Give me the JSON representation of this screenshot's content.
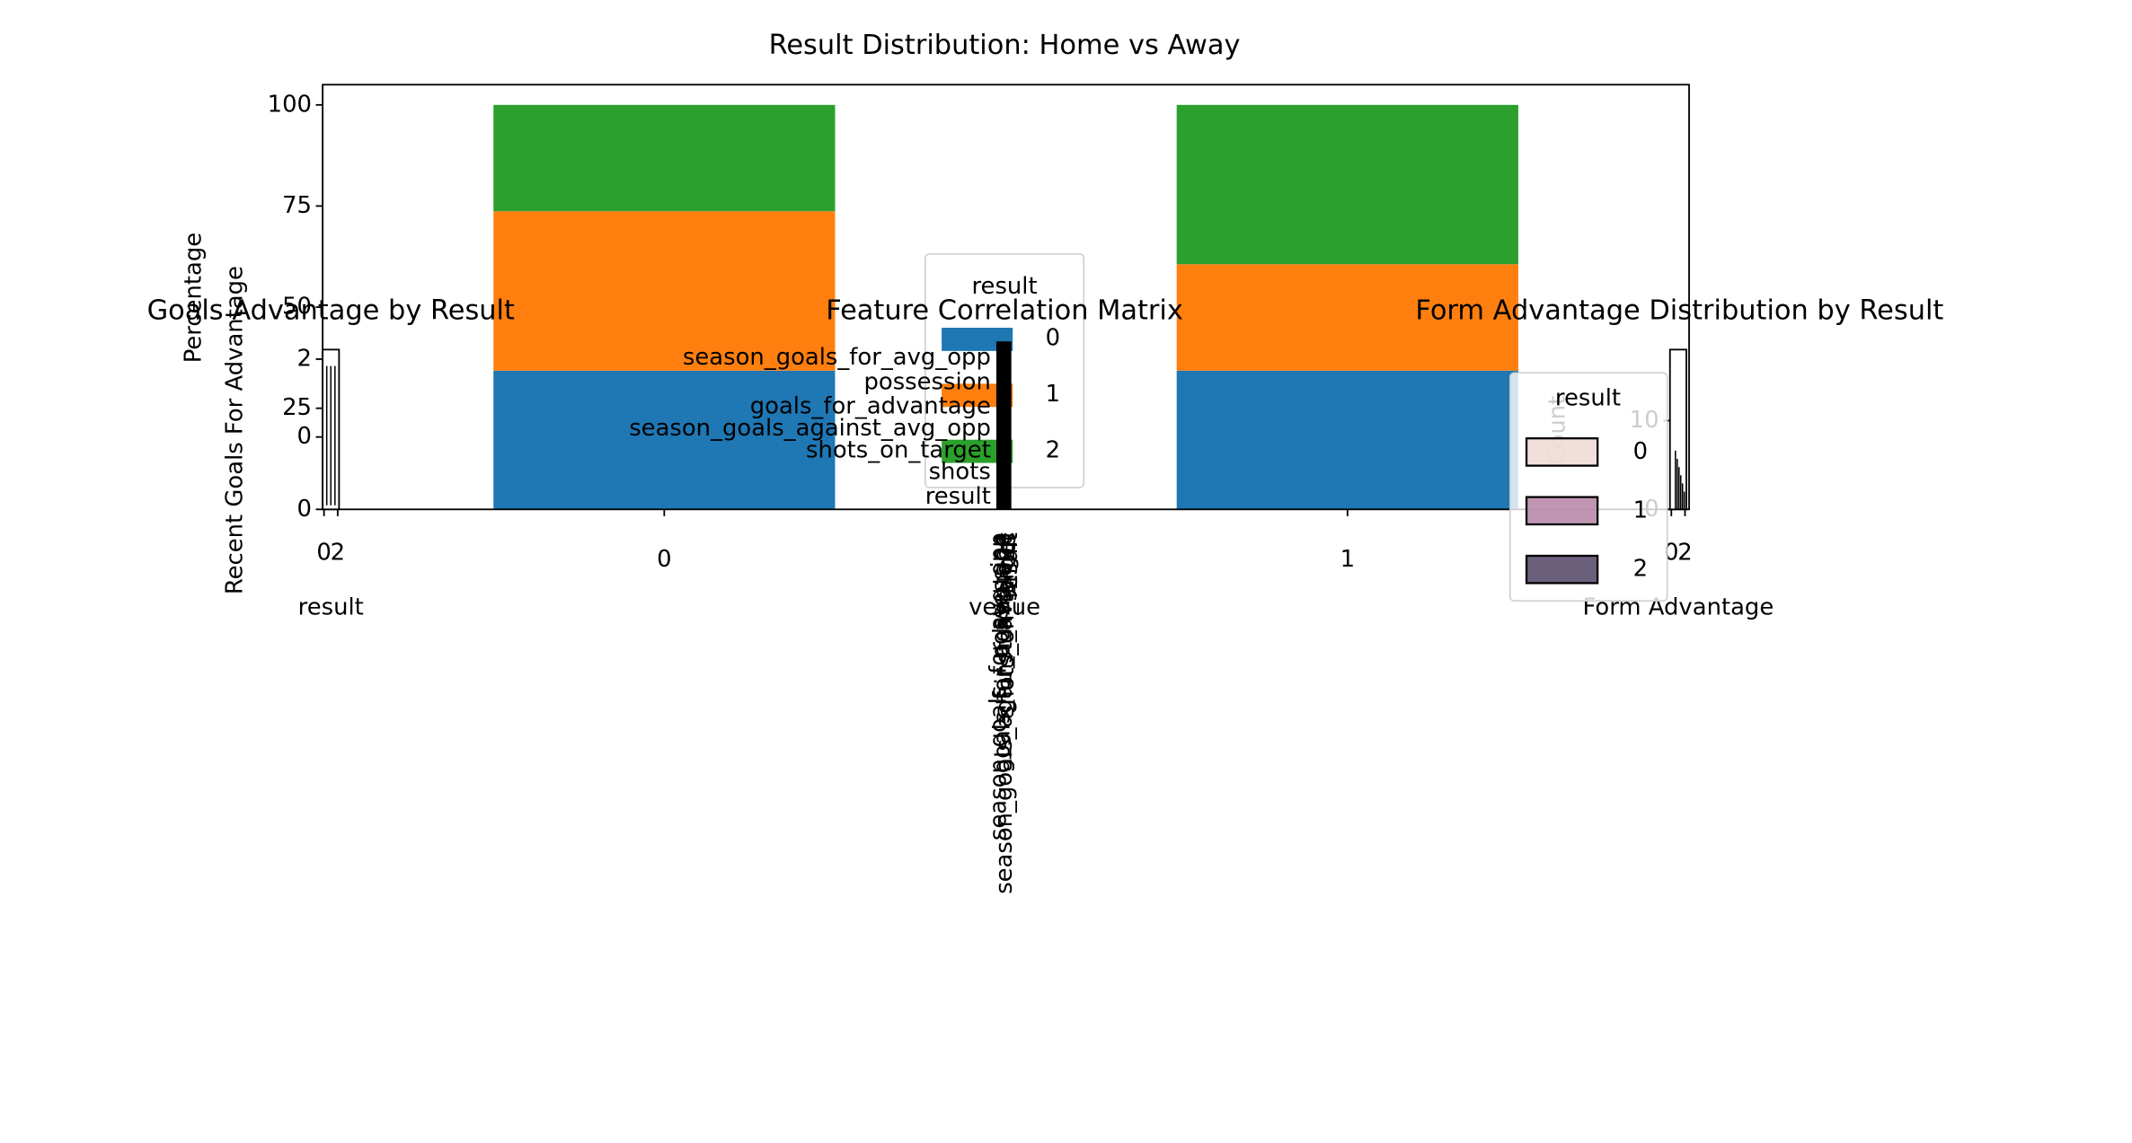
{
  "chart_data": [
    {
      "type": "stacked_bar",
      "title": "Result Distribution: Home vs Away",
      "xlabel": "venue",
      "ylabel": "Percentage",
      "categories": [
        "0",
        "1"
      ],
      "ylim": [
        0,
        105
      ],
      "yticks": [
        0,
        25,
        50,
        75,
        100
      ],
      "legend_title": "result",
      "legend": "center",
      "series": [
        {
          "name": "0",
          "color": "#1f77b4",
          "values": [
            34.3,
            34.3
          ]
        },
        {
          "name": "1",
          "color": "#ff7f0e",
          "values": [
            39.4,
            26.3
          ]
        },
        {
          "name": "2",
          "color": "#2ca02c",
          "values": [
            26.3,
            39.4
          ]
        }
      ]
    },
    {
      "type": "box",
      "title": "Goals Advantage by Result",
      "xlabel": "result",
      "ylabel": "Recent Goals For Advantage",
      "xticks": [
        0,
        2
      ],
      "yticks": [
        0,
        2
      ]
    },
    {
      "type": "heatmap",
      "title": "Feature Correlation Matrix",
      "labels": [
        "season_goals_for_avg_opp",
        "possession",
        "goals_for_advantage",
        "season_goals_against_avg_opp",
        "shots_on_target",
        "shots",
        "result"
      ]
    },
    {
      "type": "histogram",
      "title": "Form Advantage Distribution by Result",
      "xlabel": "Form Advantage",
      "ylabel": "Count",
      "xticks": [
        0,
        2
      ],
      "yticks": [
        0,
        10
      ],
      "legend_title": "result",
      "series": [
        {
          "name": "0",
          "color": "#f0dcd8"
        },
        {
          "name": "1",
          "color": "#b98aa8"
        },
        {
          "name": "2",
          "color": "#5b4f6e"
        }
      ]
    }
  ]
}
